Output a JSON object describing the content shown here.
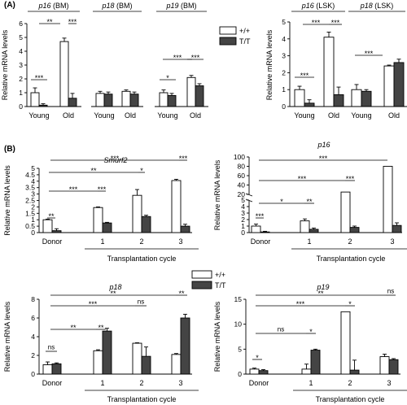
{
  "panels": {
    "A": "(A)",
    "B": "(B)"
  },
  "legend": {
    "items": [
      {
        "label": "+/+",
        "color": "#ffffff"
      },
      {
        "label": "T/T",
        "color": "#444444"
      }
    ]
  },
  "colors": {
    "wt": "#ffffff",
    "tt": "#444444",
    "stroke": "#000000"
  },
  "chart_data": [
    {
      "id": "A-BM",
      "type": "bar",
      "ylabel": "Relative mRNA levels",
      "ylim": [
        0,
        6
      ],
      "yticks": [
        "0",
        "1",
        "2",
        "3",
        "4",
        "5",
        "6"
      ],
      "groups": [
        {
          "gene": "p16",
          "suffix": " (BM)",
          "categories": [
            "Young",
            "Old"
          ],
          "series": [
            {
              "name": "+/+",
              "values": [
                1.0,
                4.7
              ],
              "err": [
                0.35,
                0.25
              ]
            },
            {
              "name": "T/T",
              "values": [
                0.1,
                0.6
              ],
              "err": [
                0.1,
                0.35
              ]
            }
          ]
        },
        {
          "gene": "p18",
          "suffix": " (BM)",
          "categories": [
            "Young",
            "Old"
          ],
          "series": [
            {
              "name": "+/+",
              "values": [
                0.95,
                1.1
              ],
              "err": [
                0.15,
                0.1
              ]
            },
            {
              "name": "T/T",
              "values": [
                0.9,
                0.9
              ],
              "err": [
                0.15,
                0.15
              ]
            }
          ]
        },
        {
          "gene": "p19",
          "suffix": " (BM)",
          "categories": [
            "Young",
            "Old"
          ],
          "series": [
            {
              "name": "+/+",
              "values": [
                1.0,
                2.1
              ],
              "err": [
                0.2,
                0.15
              ]
            },
            {
              "name": "T/T",
              "values": [
                0.8,
                1.5
              ],
              "err": [
                0.15,
                0.15
              ]
            }
          ]
        }
      ],
      "sig": [
        "***",
        "**",
        "***",
        "*",
        "***",
        "***"
      ]
    },
    {
      "id": "A-LSK",
      "type": "bar",
      "ylabel": "Relative mRNA levels",
      "ylim": [
        0,
        5
      ],
      "yticks": [
        "0",
        "1",
        "2",
        "3",
        "4",
        "5"
      ],
      "groups": [
        {
          "gene": "p16",
          "suffix": " (LSK)",
          "categories": [
            "Young",
            "Old"
          ],
          "series": [
            {
              "name": "+/+",
              "values": [
                1.0,
                4.1
              ],
              "err": [
                0.2,
                0.3
              ]
            },
            {
              "name": "T/T",
              "values": [
                0.2,
                0.7
              ],
              "err": [
                0.2,
                0.45
              ]
            }
          ]
        },
        {
          "gene": "p18",
          "suffix": " (LSK)",
          "categories": [
            "Young",
            "Old"
          ],
          "series": [
            {
              "name": "+/+",
              "values": [
                1.0,
                2.4
              ],
              "err": [
                0.3,
                0.05
              ]
            },
            {
              "name": "T/T",
              "values": [
                0.9,
                2.6
              ],
              "err": [
                0.1,
                0.2
              ]
            }
          ]
        }
      ],
      "sig": [
        "***",
        "***",
        "***",
        "***"
      ]
    },
    {
      "id": "B-Smurf2",
      "type": "bar",
      "title": "Smurf2",
      "ylabel": "Relative mRNA levels",
      "ylim": [
        0,
        5
      ],
      "yticks": [
        "0",
        "0.5",
        "1",
        "1.5",
        "2",
        "2.5",
        "3",
        "3.5",
        "4",
        "4.5",
        "5"
      ],
      "categories": [
        "Donor",
        "1",
        "2",
        "3"
      ],
      "xlabel": "Transplantation cycle",
      "series": [
        {
          "name": "+/+",
          "values": [
            1.0,
            1.95,
            2.9,
            4.05
          ],
          "err": [
            0.05,
            0.05,
            0.45,
            0.1
          ]
        },
        {
          "name": "T/T",
          "values": [
            0.15,
            0.75,
            1.25,
            0.5
          ],
          "err": [
            0.15,
            0.05,
            0.1,
            0.15
          ]
        }
      ],
      "sig": [
        "**",
        "***",
        "***",
        "**",
        "*",
        "***",
        "***"
      ]
    },
    {
      "id": "B-p16",
      "type": "bar",
      "title": "p16",
      "ylabel": "Relative mRNA levels",
      "yticks_low": [
        "0",
        "1",
        "2",
        "3",
        "4",
        "5"
      ],
      "yticks_high": [
        "20",
        "40",
        "60",
        "80",
        "100"
      ],
      "categories": [
        "Donor",
        "1",
        "2",
        "3"
      ],
      "xlabel": "Transplantation cycle",
      "series": [
        {
          "name": "+/+",
          "values": [
            1.0,
            1.8,
            25,
            80
          ],
          "err": [
            0.3,
            0.3,
            0,
            0
          ]
        },
        {
          "name": "T/T",
          "values": [
            0.1,
            0.5,
            0.8,
            1.1
          ],
          "err": [
            0.1,
            0.2,
            0.2,
            0.4
          ]
        }
      ],
      "sig": [
        "***",
        "*",
        "**",
        "***",
        "***",
        "***"
      ]
    },
    {
      "id": "B-p18",
      "type": "bar",
      "title": "p18",
      "ylabel": "Relative mRNA levels",
      "ylim": [
        0,
        8
      ],
      "yticks": [
        "0",
        "2",
        "4",
        "6",
        "8"
      ],
      "categories": [
        "Donor",
        "1",
        "2",
        "3"
      ],
      "xlabel": "Transplantation cycle",
      "series": [
        {
          "name": "+/+",
          "values": [
            1.0,
            2.5,
            3.3,
            2.1
          ],
          "err": [
            0.3,
            0.1,
            0.05,
            0.1
          ]
        },
        {
          "name": "T/T",
          "values": [
            1.1,
            4.6,
            1.9,
            6.0
          ],
          "err": [
            0.1,
            0.3,
            1.0,
            0.4
          ]
        }
      ],
      "sig": [
        "ns",
        "**",
        "**",
        "***",
        "ns",
        "**",
        "**"
      ]
    },
    {
      "id": "B-p19",
      "type": "bar",
      "title": "p19",
      "ylabel": "Relative mRNA levels",
      "ylim": [
        0,
        15
      ],
      "yticks": [
        "0",
        "5",
        "10",
        "15"
      ],
      "categories": [
        "Donor",
        "1",
        "2",
        "3"
      ],
      "xlabel": "Transplantation cycle",
      "series": [
        {
          "name": "+/+",
          "values": [
            1.0,
            1.0,
            12.5,
            3.5
          ],
          "err": [
            0.2,
            1.0,
            0,
            0.5
          ]
        },
        {
          "name": "T/T",
          "values": [
            0.7,
            4.8,
            0.8,
            2.9
          ],
          "err": [
            0.2,
            0.2,
            2.0,
            0.2
          ]
        }
      ],
      "sig": [
        "*",
        "ns",
        "*",
        "***",
        "*",
        "**",
        "ns"
      ]
    }
  ]
}
